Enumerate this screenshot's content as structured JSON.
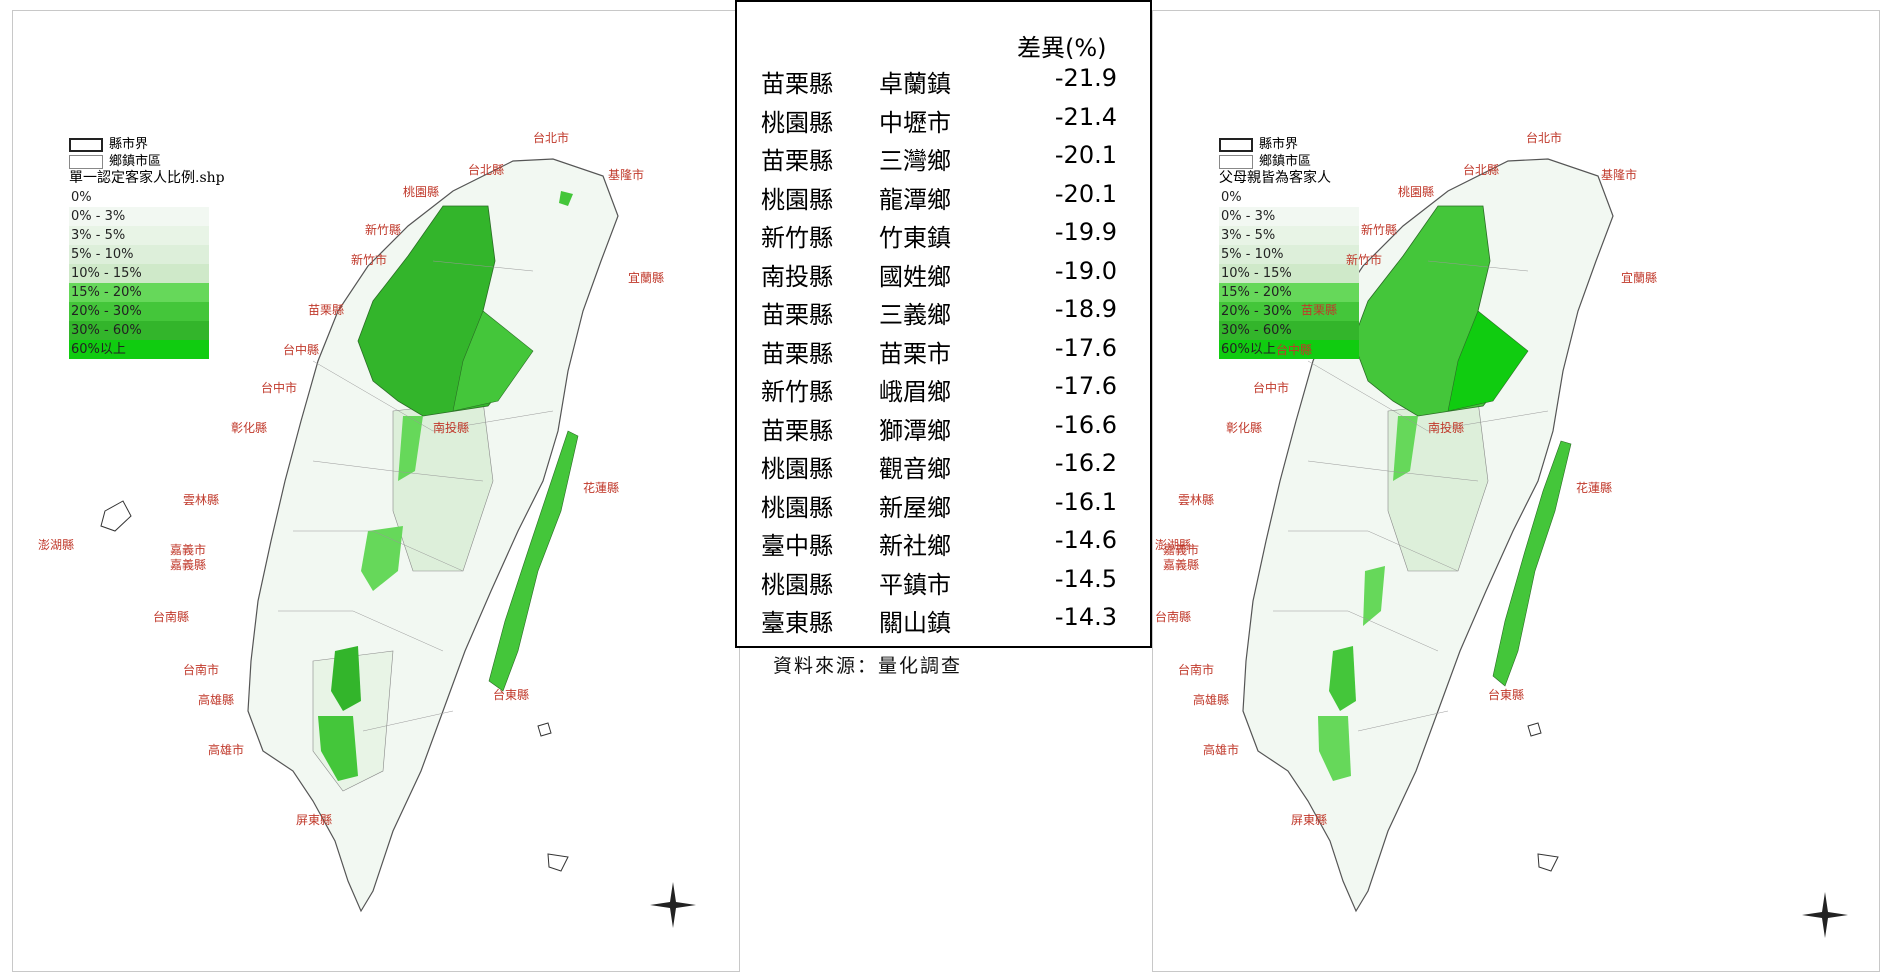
{
  "left_map": {
    "legend": {
      "boundary_labels": [
        "縣市界",
        "鄉鎮市區"
      ],
      "title": "單一認定客家人比例.shp",
      "classes": [
        {
          "label": "0%",
          "color": "#ffffff"
        },
        {
          "label": "0% - 3%",
          "color": "#f2f8f2"
        },
        {
          "label": "3% - 5%",
          "color": "#e8f4e6"
        },
        {
          "label": "5% - 10%",
          "color": "#ddefda"
        },
        {
          "label": "10% - 15%",
          "color": "#cfe9c9"
        },
        {
          "label": "15% - 20%",
          "color": "#66d85a"
        },
        {
          "label": "20% - 30%",
          "color": "#44c63a"
        },
        {
          "label": "30% - 60%",
          "color": "#33b52b"
        },
        {
          "label": "60%以上",
          "color": "#10cc10"
        }
      ]
    },
    "place_labels": [
      "台北市",
      "台北縣",
      "基隆市",
      "桃園縣",
      "新竹縣",
      "新竹市",
      "宜蘭縣",
      "苗栗縣",
      "台中縣",
      "台中市",
      "彰化縣",
      "南投縣",
      "花蓮縣",
      "雲林縣",
      "澎湖縣",
      "嘉義市",
      "嘉義縣",
      "台南縣",
      "台南市",
      "高雄縣",
      "高雄市",
      "台東縣",
      "屏東縣"
    ]
  },
  "right_map": {
    "legend": {
      "boundary_labels": [
        "縣市界",
        "鄉鎮市區"
      ],
      "title": "父母親皆為客家人",
      "classes": [
        {
          "label": "0%",
          "color": "#ffffff"
        },
        {
          "label": "0% - 3%",
          "color": "#f2f8f2"
        },
        {
          "label": "3% - 5%",
          "color": "#e8f4e6"
        },
        {
          "label": "5% - 10%",
          "color": "#ddefda"
        },
        {
          "label": "10% - 15%",
          "color": "#cfe9c9"
        },
        {
          "label": "15% - 20%",
          "color": "#66d85a"
        },
        {
          "label": "20% - 30%",
          "color": "#44c63a"
        },
        {
          "label": "30% - 60%",
          "color": "#33b52b"
        },
        {
          "label": "60%以上",
          "color": "#10cc10"
        }
      ]
    },
    "place_labels": [
      "台北市",
      "台北縣",
      "基隆市",
      "桃園縣",
      "新竹縣",
      "新竹市",
      "宜蘭縣",
      "苗栗縣",
      "台中縣",
      "台中市",
      "彰化縣",
      "南投縣",
      "花蓮縣",
      "雲林縣",
      "澎湖縣",
      "嘉義市",
      "嘉義縣",
      "台南縣",
      "台南市",
      "高雄縣",
      "高雄市",
      "台東縣",
      "屏東縣"
    ]
  },
  "table": {
    "header": "差異(%)",
    "rows": [
      {
        "county": "苗栗縣",
        "town": "卓蘭鎮",
        "diff": "-21.9"
      },
      {
        "county": "桃園縣",
        "town": "中壢市",
        "diff": "-21.4"
      },
      {
        "county": "苗栗縣",
        "town": "三灣鄉",
        "diff": "-20.1"
      },
      {
        "county": "桃園縣",
        "town": "龍潭鄉",
        "diff": "-20.1"
      },
      {
        "county": "新竹縣",
        "town": "竹東鎮",
        "diff": "-19.9"
      },
      {
        "county": "南投縣",
        "town": "國姓鄉",
        "diff": "-19.0"
      },
      {
        "county": "苗栗縣",
        "town": "三義鄉",
        "diff": "-18.9"
      },
      {
        "county": "苗栗縣",
        "town": "苗栗市",
        "diff": "-17.6"
      },
      {
        "county": "新竹縣",
        "town": "峨眉鄉",
        "diff": "-17.6"
      },
      {
        "county": "苗栗縣",
        "town": "獅潭鄉",
        "diff": "-16.6"
      },
      {
        "county": "桃園縣",
        "town": "觀音鄉",
        "diff": "-16.2"
      },
      {
        "county": "桃園縣",
        "town": "新屋鄉",
        "diff": "-16.1"
      },
      {
        "county": "臺中縣",
        "town": "新社鄉",
        "diff": "-14.6"
      },
      {
        "county": "桃園縣",
        "town": "平鎮市",
        "diff": "-14.5"
      },
      {
        "county": "臺東縣",
        "town": "關山鎮",
        "diff": "-14.3"
      }
    ]
  },
  "source": "資料來源：量化調查"
}
